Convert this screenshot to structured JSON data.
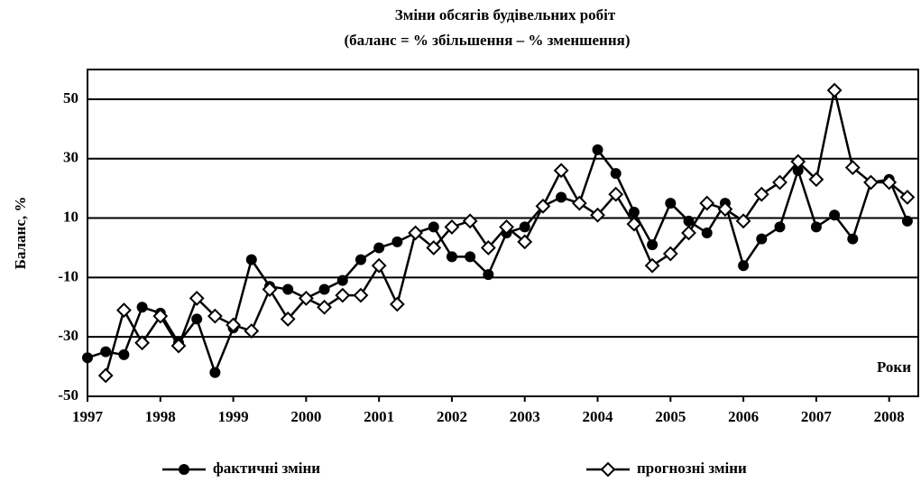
{
  "chart_data": {
    "type": "line",
    "title": "Зміни обсягів будівельних робіт",
    "subtitle": "(баланс = % збільшення – % зменшення)",
    "y_label": "Баланс, %",
    "x_annotation": "Роки",
    "x": [
      1997,
      1997.25,
      1997.5,
      1997.75,
      1998,
      1998.25,
      1998.5,
      1998.75,
      1999,
      1999.25,
      1999.5,
      1999.75,
      2000,
      2000.25,
      2000.5,
      2000.75,
      2001,
      2001.25,
      2001.5,
      2001.75,
      2002,
      2002.25,
      2002.5,
      2002.75,
      2003,
      2003.25,
      2003.5,
      2003.75,
      2004,
      2004.25,
      2004.5,
      2004.75,
      2005,
      2005.25,
      2005.5,
      2005.75,
      2006,
      2006.25,
      2006.5,
      2006.75,
      2007,
      2007.25,
      2007.5,
      2007.75,
      2008,
      2008.25
    ],
    "series": [
      {
        "name": "фактичні зміни",
        "color": "#000000",
        "marker": "circle",
        "values": [
          -37,
          -35,
          -36,
          -20,
          -22,
          -32,
          -24,
          -42,
          -27,
          -4,
          -13,
          -14,
          -17,
          -14,
          -11,
          -4,
          0,
          2,
          5,
          7,
          -3,
          -3,
          -9,
          5,
          7,
          14,
          17,
          15,
          33,
          25,
          12,
          1,
          15,
          9,
          5,
          15,
          -6,
          3,
          7,
          26,
          7,
          11,
          3,
          22,
          23,
          9
        ]
      },
      {
        "name": "прогнозні зміни",
        "color": "#000000",
        "marker": "diamond",
        "values": [
          null,
          -43,
          -21,
          -32,
          -23,
          -33,
          -17,
          -23,
          -26,
          -28,
          -14,
          -24,
          -17,
          -20,
          -16,
          -16,
          -6,
          -19,
          5,
          0,
          7,
          9,
          0,
          7,
          2,
          14,
          26,
          15,
          11,
          18,
          8,
          -6,
          -2,
          5,
          15,
          13,
          9,
          18,
          22,
          29,
          23,
          53,
          27,
          22,
          22,
          17
        ]
      }
    ],
    "xlim": [
      1997,
      2008.4
    ],
    "xticks": [
      1997,
      1998,
      1999,
      2000,
      2001,
      2002,
      2003,
      2004,
      2005,
      2006,
      2007,
      2008
    ],
    "ylim": [
      -50,
      60
    ],
    "yticks": [
      -50,
      -30,
      -10,
      10,
      30,
      50
    ],
    "grid": true,
    "legend": "bottom"
  }
}
